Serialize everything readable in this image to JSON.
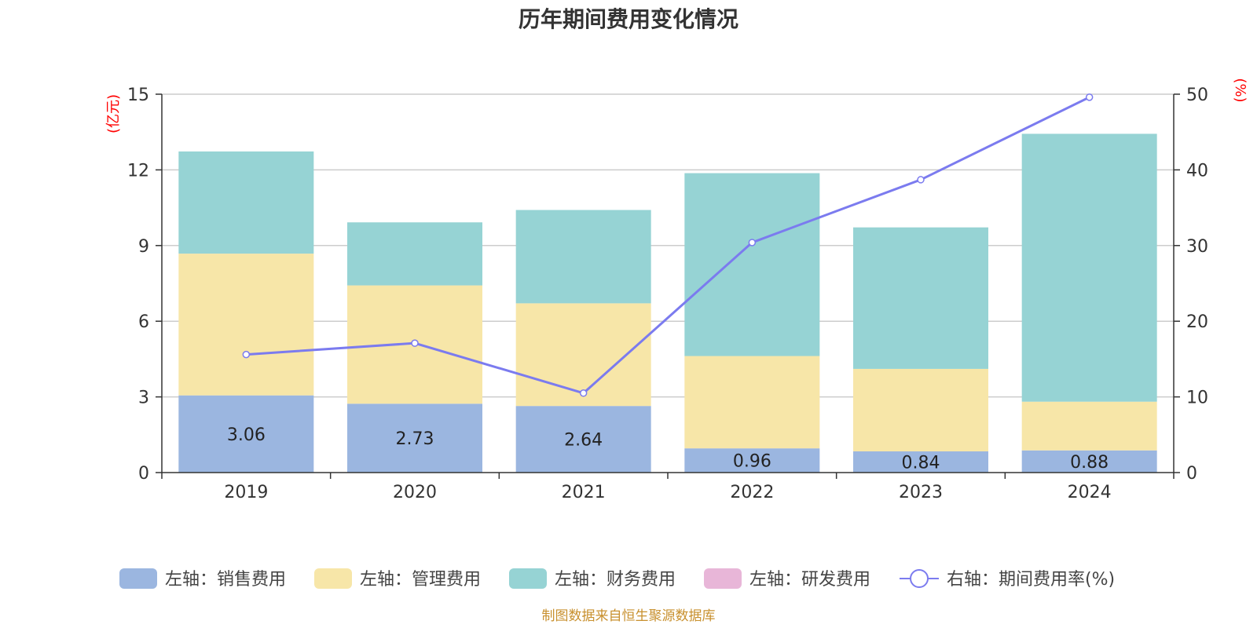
{
  "chart_data": {
    "type": "bar",
    "title": "历年期间费用变化情况",
    "categories": [
      "2019",
      "2020",
      "2021",
      "2022",
      "2023",
      "2024"
    ],
    "left_axis": {
      "unit": "(亿元)",
      "ylim": [
        0,
        15
      ],
      "ticks": [
        "0",
        "3",
        "6",
        "9",
        "12",
        "15"
      ]
    },
    "right_axis": {
      "unit": "(%)",
      "ylim": [
        0,
        50
      ],
      "ticks": [
        "0",
        "10",
        "20",
        "30",
        "40",
        "50"
      ]
    },
    "grid": true,
    "stacked": true,
    "series": [
      {
        "name": "左轴：销售费用",
        "axis": "left",
        "type": "bar",
        "color": "#9bb6e0",
        "values": [
          3.06,
          2.73,
          2.64,
          0.96,
          0.84,
          0.88
        ],
        "labels": [
          "3.06",
          "2.73",
          "2.64",
          "0.96",
          "0.84",
          "0.88"
        ]
      },
      {
        "name": "左轴：管理费用",
        "axis": "left",
        "type": "bar",
        "color": "#f7e6a8",
        "values": [
          5.62,
          4.69,
          4.07,
          3.66,
          3.27,
          1.93
        ]
      },
      {
        "name": "左轴：财务费用",
        "axis": "left",
        "type": "bar",
        "color": "#96d3d4",
        "values": [
          4.05,
          2.5,
          3.7,
          7.25,
          5.61,
          10.62
        ]
      },
      {
        "name": "左轴：研发费用",
        "axis": "left",
        "type": "bar",
        "color": "#e8b6d8",
        "values": [
          0,
          0,
          0,
          0,
          0,
          0
        ]
      },
      {
        "name": "右轴：期间费用率(%)",
        "axis": "right",
        "type": "line",
        "color": "#7b7bef",
        "values": [
          15.6,
          17.1,
          10.5,
          30.4,
          38.7,
          49.6
        ]
      }
    ],
    "legend_position": "bottom"
  },
  "source": "制图数据来自恒生聚源数据库"
}
